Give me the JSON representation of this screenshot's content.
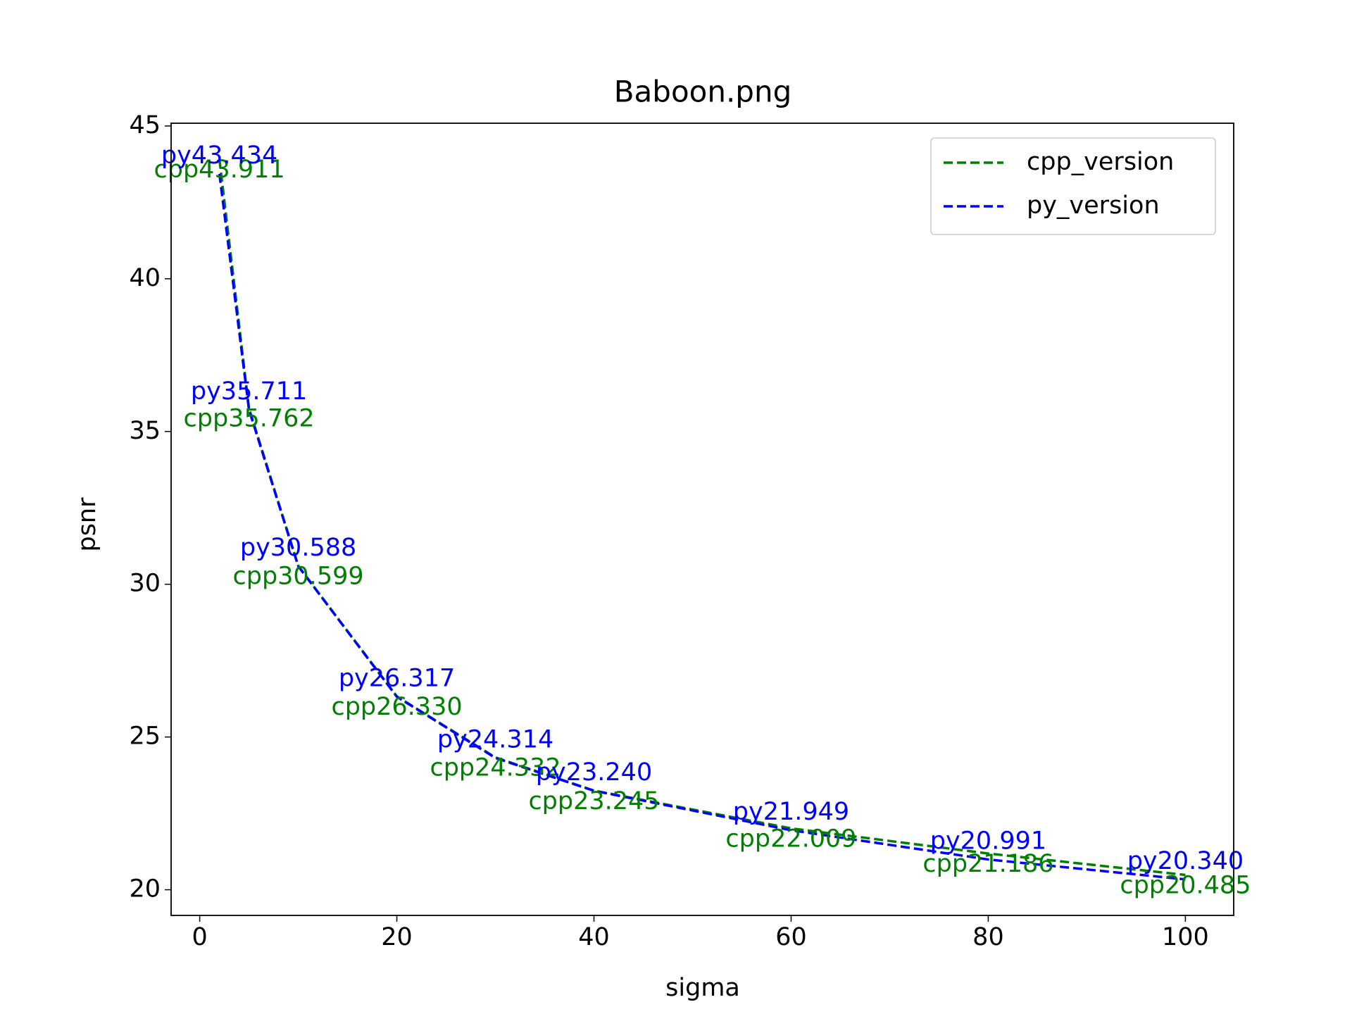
{
  "chart_data": {
    "type": "line",
    "title": "Baboon.png",
    "x_label": "sigma",
    "y_label": "psnr",
    "x": [
      2,
      5,
      10,
      20,
      30,
      40,
      60,
      80,
      100
    ],
    "series": [
      {
        "name": "cpp_version",
        "color": "#008000",
        "linestyle": "dashed",
        "values": [
          43.911,
          35.762,
          30.599,
          26.33,
          24.332,
          23.245,
          22.009,
          21.186,
          20.485
        ],
        "value_labels": [
          "cpp43.911",
          "cpp35.762",
          "cpp30.599",
          "cpp26.330",
          "cpp24.332",
          "cpp23.245",
          "cpp22.009",
          "cpp21.186",
          "cpp20.485"
        ]
      },
      {
        "name": "py_version",
        "color": "#0000ff",
        "linestyle": "dashed",
        "values": [
          43.434,
          35.711,
          30.588,
          26.317,
          24.314,
          23.24,
          21.949,
          20.991,
          20.34
        ],
        "value_labels": [
          "py43.434",
          "py35.711",
          "py30.588",
          "py26.317",
          "py24.314",
          "py23.240",
          "py21.949",
          "py20.991",
          "py20.340"
        ]
      }
    ],
    "xlim": [
      -2.9,
      104.9
    ],
    "ylim": [
      19.16,
      45.09
    ],
    "xticks": [
      0,
      20,
      40,
      60,
      80,
      100
    ],
    "yticks": [
      20,
      25,
      30,
      35,
      40,
      45
    ],
    "grid": false,
    "legend": "upper right"
  }
}
